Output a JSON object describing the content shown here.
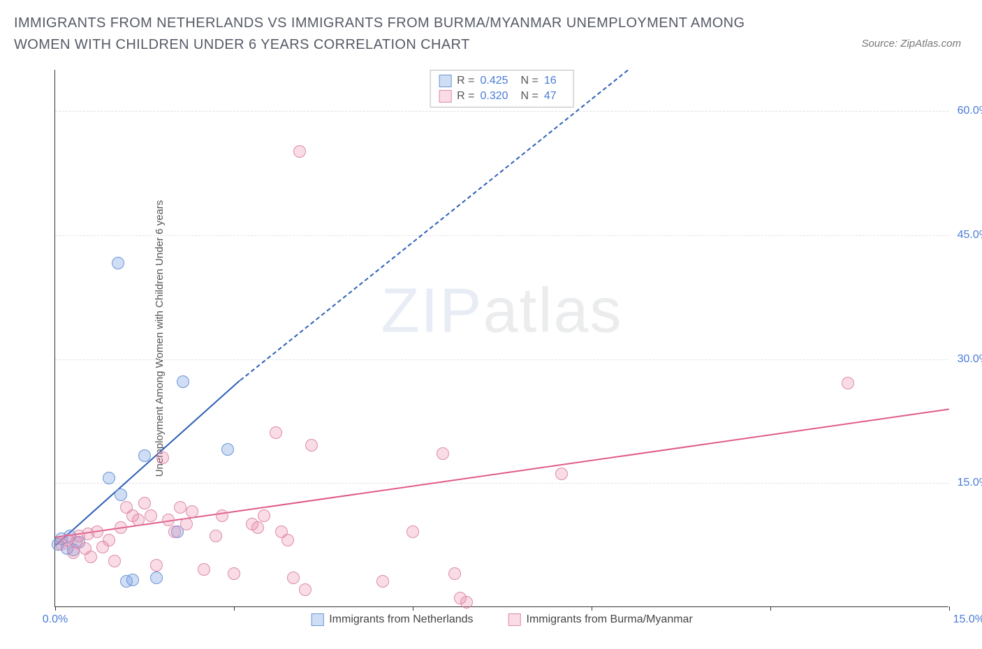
{
  "header": {
    "title": "IMMIGRANTS FROM NETHERLANDS VS IMMIGRANTS FROM BURMA/MYANMAR UNEMPLOYMENT AMONG WOMEN WITH CHILDREN UNDER 6 YEARS CORRELATION CHART",
    "source": "Source: ZipAtlas.com"
  },
  "watermark": {
    "bold": "ZIP",
    "thin": "atlas"
  },
  "chart": {
    "type": "scatter",
    "ylabel": "Unemployment Among Women with Children Under 6 years",
    "xlim": [
      0,
      15
    ],
    "ylim": [
      0,
      65
    ],
    "xticks": [
      0,
      3,
      6,
      9,
      12,
      15
    ],
    "xtick_labels": {
      "0": "0.0%",
      "15": "15.0%"
    },
    "yticks": [
      15,
      30,
      45,
      60
    ],
    "ytick_labels": {
      "15": "15.0%",
      "30": "30.0%",
      "45": "45.0%",
      "60": "60.0%"
    },
    "background_color": "#ffffff",
    "grid_color": "#e2e2e2",
    "axis_color": "#333333",
    "marker_size": 18,
    "series": [
      {
        "name": "Immigrants from Netherlands",
        "fill": "rgba(120,160,225,0.35)",
        "stroke": "#6a94d6",
        "line_color": "#2e5fb8",
        "R": "0.425",
        "N": "16",
        "trend": {
          "x1": 0,
          "y1": 7.5,
          "x2": 3.1,
          "y2": 27.5
        },
        "trend_dash": {
          "x1": 3.1,
          "y1": 27.5,
          "x2": 9.6,
          "y2": 65
        },
        "points": [
          [
            0.05,
            7.5
          ],
          [
            0.1,
            8.2
          ],
          [
            0.2,
            7.0
          ],
          [
            0.25,
            8.5
          ],
          [
            0.3,
            6.8
          ],
          [
            0.4,
            7.8
          ],
          [
            0.9,
            15.5
          ],
          [
            1.05,
            41.5
          ],
          [
            1.1,
            13.5
          ],
          [
            1.2,
            3.0
          ],
          [
            1.3,
            3.2
          ],
          [
            1.5,
            18.2
          ],
          [
            1.7,
            3.5
          ],
          [
            2.15,
            27.2
          ],
          [
            2.05,
            9.0
          ],
          [
            2.9,
            19.0
          ]
        ]
      },
      {
        "name": "Immigrants from Burma/Myanmar",
        "fill": "rgba(235,130,165,0.28)",
        "stroke": "#de8aaa",
        "line_color": "#e05a88",
        "R": "0.320",
        "N": "47",
        "trend": {
          "x1": 0,
          "y1": 8.5,
          "x2": 15,
          "y2": 24
        },
        "points": [
          [
            0.1,
            7.5
          ],
          [
            0.2,
            8.0
          ],
          [
            0.3,
            6.5
          ],
          [
            0.35,
            7.8
          ],
          [
            0.4,
            8.5
          ],
          [
            0.5,
            7.0
          ],
          [
            0.55,
            8.8
          ],
          [
            0.6,
            6.0
          ],
          [
            0.7,
            9.0
          ],
          [
            0.8,
            7.2
          ],
          [
            0.9,
            8.0
          ],
          [
            1.0,
            5.5
          ],
          [
            1.1,
            9.5
          ],
          [
            1.2,
            12.0
          ],
          [
            1.3,
            11.0
          ],
          [
            1.4,
            10.5
          ],
          [
            1.5,
            12.5
          ],
          [
            1.6,
            11.0
          ],
          [
            1.7,
            5.0
          ],
          [
            1.8,
            18.0
          ],
          [
            1.9,
            10.5
          ],
          [
            2.0,
            9.0
          ],
          [
            2.1,
            12.0
          ],
          [
            2.2,
            10.0
          ],
          [
            2.3,
            11.5
          ],
          [
            2.5,
            4.5
          ],
          [
            2.7,
            8.5
          ],
          [
            2.8,
            11.0
          ],
          [
            3.0,
            4.0
          ],
          [
            3.3,
            10.0
          ],
          [
            3.4,
            9.5
          ],
          [
            3.5,
            11.0
          ],
          [
            3.7,
            21.0
          ],
          [
            3.8,
            9.0
          ],
          [
            3.9,
            8.0
          ],
          [
            4.0,
            3.5
          ],
          [
            4.1,
            55.0
          ],
          [
            4.2,
            2.0
          ],
          [
            5.5,
            3.0
          ],
          [
            6.0,
            9.0
          ],
          [
            6.5,
            18.5
          ],
          [
            6.7,
            4.0
          ],
          [
            6.8,
            1.0
          ],
          [
            6.9,
            0.5
          ],
          [
            8.5,
            16.0
          ],
          [
            13.3,
            27.0
          ],
          [
            4.3,
            19.5
          ]
        ]
      }
    ],
    "legend_bottom": [
      {
        "swatch_fill": "rgba(120,160,225,0.35)",
        "swatch_stroke": "#6a94d6",
        "label": "Immigrants from Netherlands"
      },
      {
        "swatch_fill": "rgba(235,130,165,0.28)",
        "swatch_stroke": "#de8aaa",
        "label": "Immigrants from Burma/Myanmar"
      }
    ]
  }
}
